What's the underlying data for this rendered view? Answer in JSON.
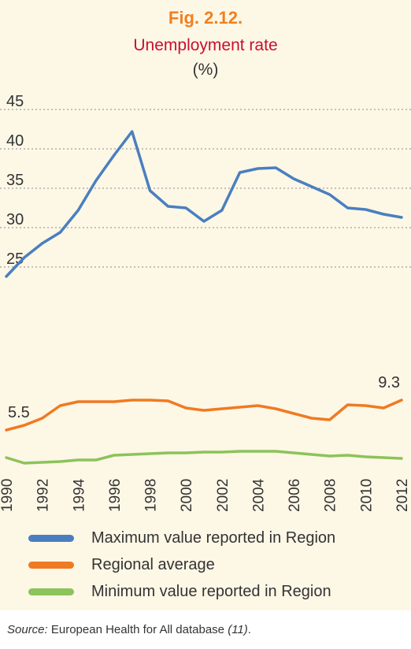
{
  "figure": {
    "label": "Fig. 2.12.",
    "title": "Unemployment rate",
    "unit": "(%)"
  },
  "colors": {
    "max": "#4a7fbf",
    "avg": "#f07a22",
    "min": "#8cc35a",
    "panel": "#fdf7e6"
  },
  "chart_data": {
    "type": "line",
    "title": "Unemployment rate",
    "ylabel": "(%)",
    "x": [
      1990,
      1991,
      1992,
      1993,
      1994,
      1995,
      1996,
      1997,
      1998,
      1999,
      2000,
      2001,
      2002,
      2003,
      2004,
      2005,
      2006,
      2007,
      2008,
      2009,
      2010,
      2011,
      2012
    ],
    "x_tick_labels": [
      "1990",
      "1992",
      "1994",
      "1996",
      "1998",
      "2000",
      "2002",
      "2004",
      "2006",
      "2008",
      "2010",
      "2012"
    ],
    "y_ticks": [
      25,
      30,
      35,
      40,
      45
    ],
    "upper_axis_range": [
      25,
      45
    ],
    "axis_break": "broken y-axis between lower and upper sections",
    "grid": "dotted horizontal lines",
    "series": [
      {
        "name": "Maximum value reported in Region",
        "color": "#4a7fbf",
        "values": [
          23.6,
          26.0,
          27.8,
          29.2,
          32.0,
          35.8,
          39.0,
          42.0,
          34.5,
          32.5,
          32.3,
          30.6,
          32.0,
          36.8,
          37.3,
          37.4,
          36.0,
          35.0,
          34.0,
          32.3,
          32.1,
          31.5,
          31.1
        ]
      },
      {
        "name": "Regional average",
        "color": "#f07a22",
        "values": [
          5.5,
          6.1,
          7.0,
          8.6,
          9.1,
          9.1,
          9.1,
          9.3,
          9.3,
          9.2,
          8.3,
          8.0,
          8.2,
          8.4,
          8.6,
          8.2,
          7.6,
          7.0,
          6.8,
          8.7,
          8.6,
          8.3,
          9.3
        ]
      },
      {
        "name": "Minimum value reported in Region",
        "color": "#8cc35a",
        "values": [
          2.0,
          1.3,
          1.4,
          1.5,
          1.7,
          1.7,
          2.3,
          2.4,
          2.5,
          2.6,
          2.6,
          2.7,
          2.7,
          2.8,
          2.8,
          2.8,
          2.6,
          2.4,
          2.2,
          2.3,
          2.1,
          2.0,
          1.9
        ]
      }
    ],
    "annotations": [
      {
        "x": 1990,
        "series": 1,
        "text": "5.5"
      },
      {
        "x": 2012,
        "series": 1,
        "text": "9.3"
      }
    ],
    "legend": "bottom"
  },
  "source": {
    "prefix": "Source:",
    "text": " European Health for All database ",
    "ref": "(11)",
    "suffix": "."
  }
}
